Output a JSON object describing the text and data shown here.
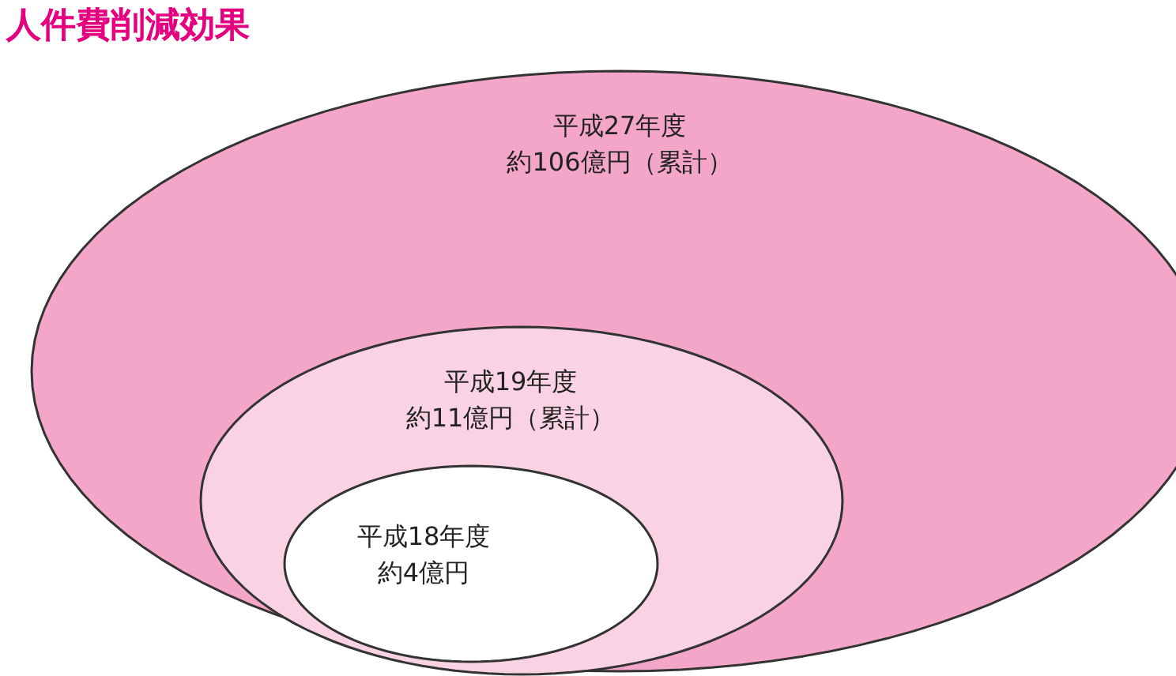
{
  "chart_data": {
    "type": "other",
    "title": "人件費削減効果",
    "categories": [
      "平成27年度",
      "平成19年度",
      "平成18年度"
    ],
    "values": [
      106,
      11,
      4
    ],
    "value_labels": [
      "約106億円（累計）",
      "約11億円（累計）",
      "約4億円"
    ],
    "colors": [
      "#f4a6c8",
      "#f9d3e4",
      "#ffffff"
    ]
  }
}
